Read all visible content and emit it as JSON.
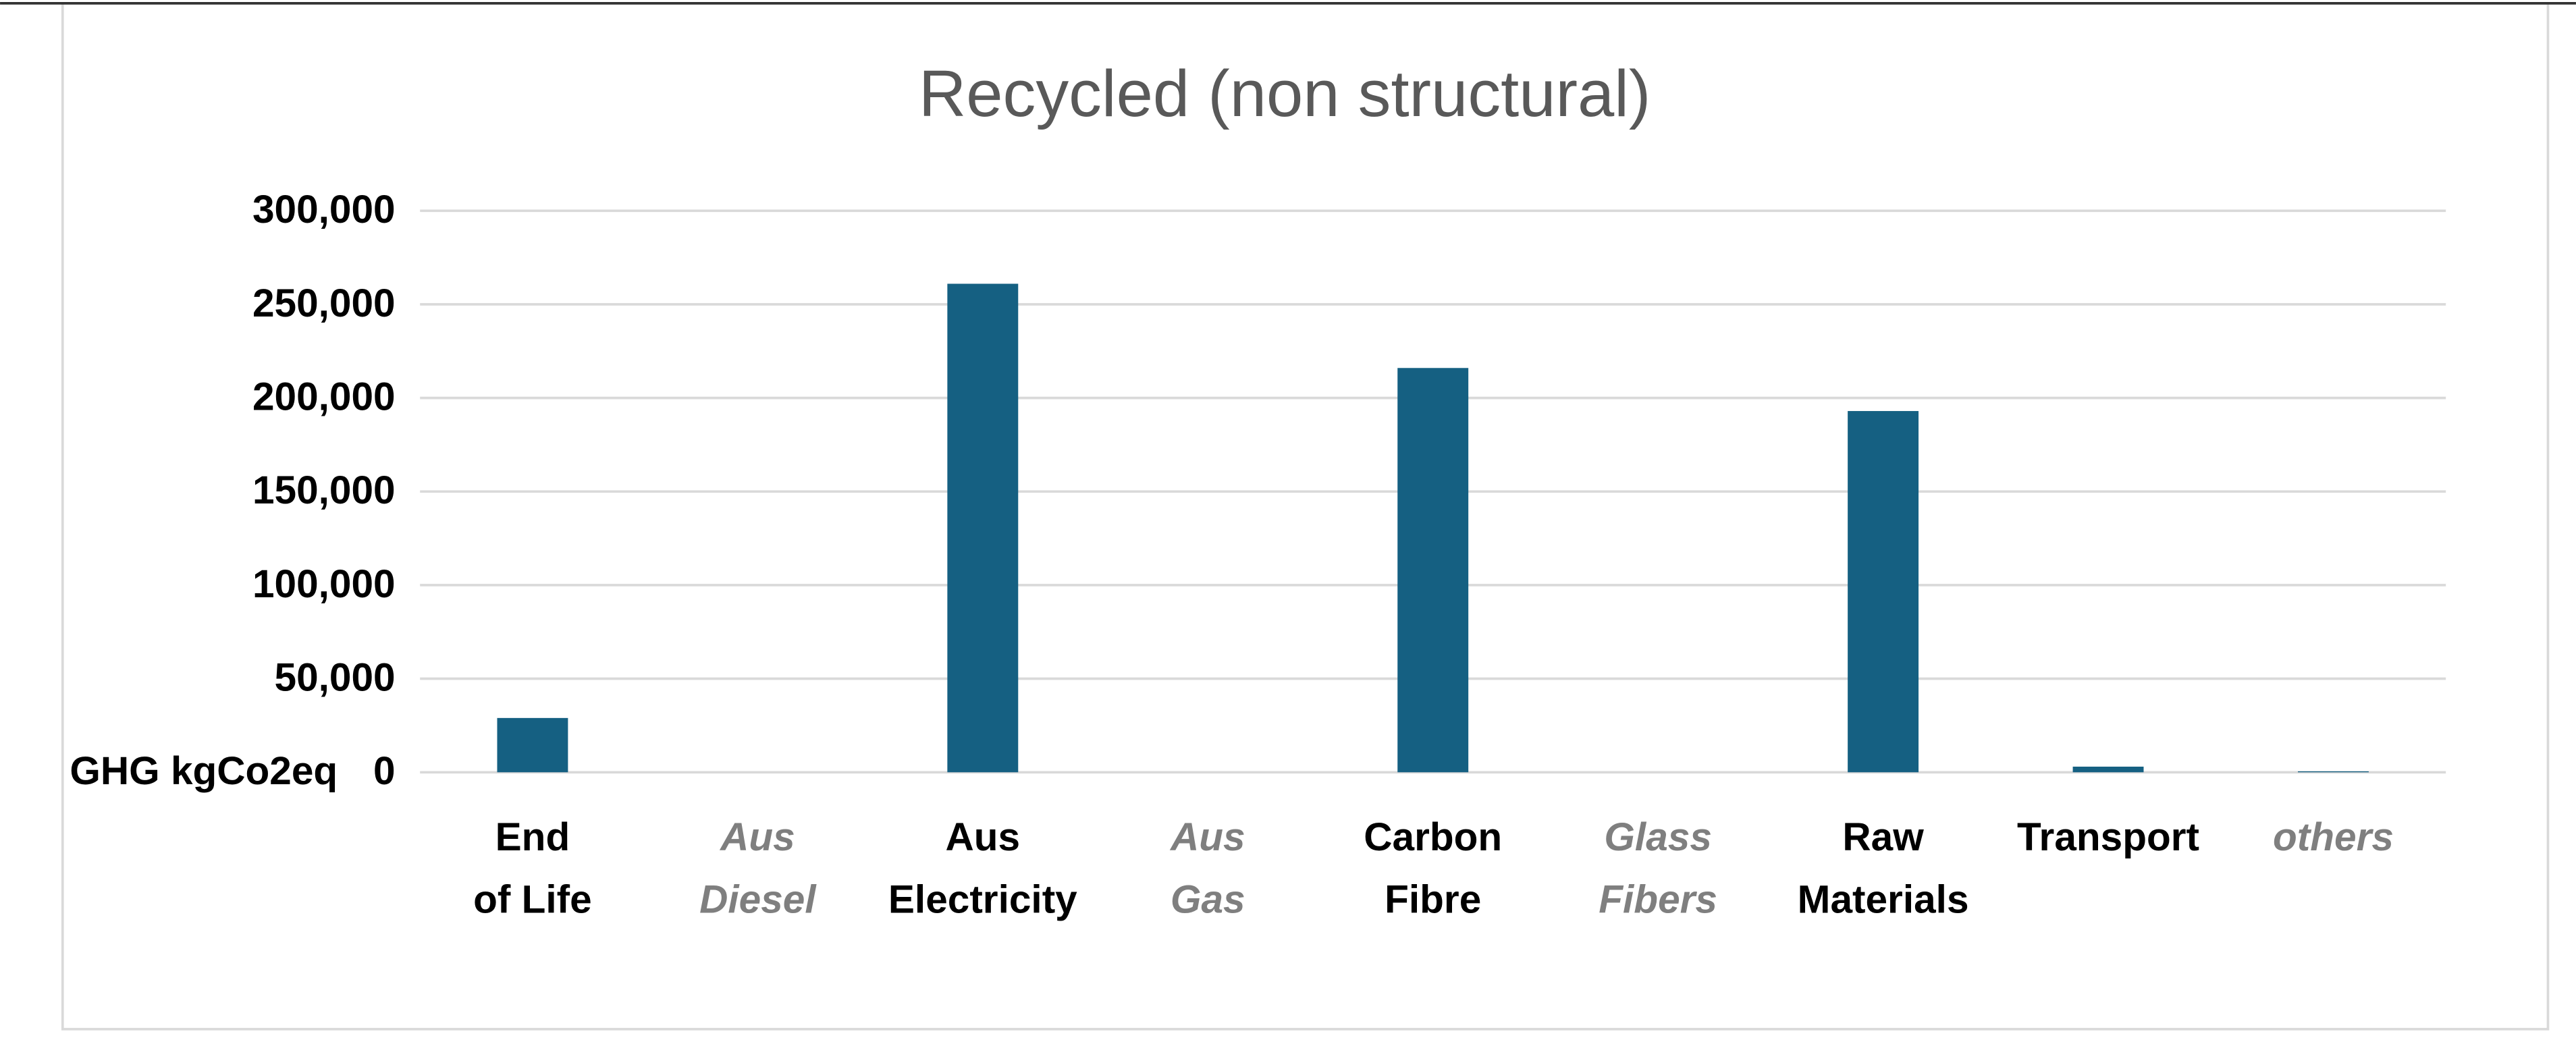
{
  "chart_data": {
    "type": "bar",
    "title": "Recycled (non structural)",
    "y_label": "GHG kgCo2eq",
    "categories": [
      [
        "End",
        "of  Life"
      ],
      [
        "Aus",
        "Diesel"
      ],
      [
        "Aus",
        "Electricity"
      ],
      [
        "Aus",
        "Gas"
      ],
      [
        "Carbon",
        "Fibre"
      ],
      [
        "Glass",
        "Fibers"
      ],
      [
        "Raw",
        "Materials"
      ],
      [
        "Transport"
      ],
      [
        "others"
      ]
    ],
    "category_label_colors": [
      "#000000",
      "#7f7f7f",
      "#000000",
      "#7f7f7f",
      "#000000",
      "#7f7f7f",
      "#000000",
      "#000000",
      "#7f7f7f"
    ],
    "category_label_italic": [
      false,
      true,
      false,
      true,
      false,
      true,
      false,
      false,
      true
    ],
    "values": [
      29000,
      0,
      261000,
      0,
      216000,
      0,
      193000,
      3000,
      500
    ],
    "color": "#156082",
    "ylim": [
      0,
      300000
    ],
    "yticks": [
      0,
      {
        "value": 50000,
        "label": "50,000"
      },
      {
        "value": 100000,
        "label": "100,000"
      },
      {
        "value": 150000,
        "label": "150,000"
      },
      {
        "value": 200000,
        "label": "200,000"
      },
      {
        "value": 250000,
        "label": "250,000"
      },
      {
        "value": 300000,
        "label": "300,000"
      }
    ],
    "grid": true
  }
}
